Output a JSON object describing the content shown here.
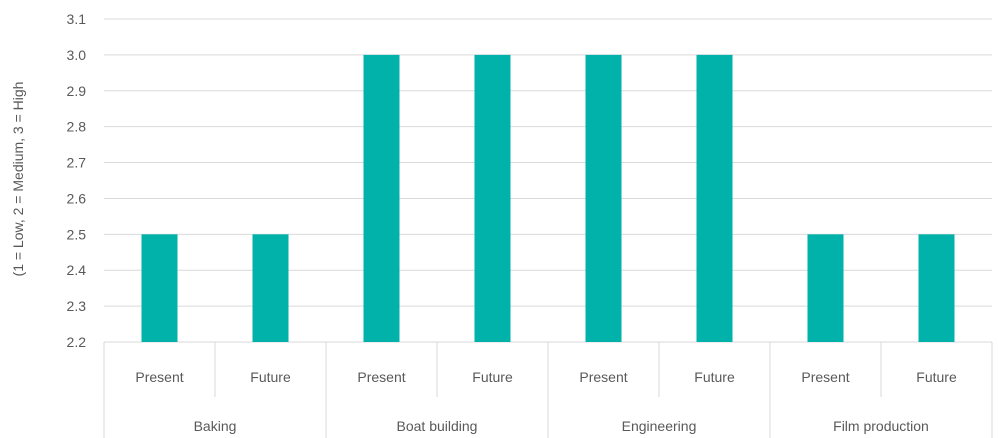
{
  "chart_data": {
    "type": "bar",
    "title": "",
    "xlabel": "",
    "ylabel": "(1 = Low, 2 = Medium, 3 = High",
    "ylim": [
      2.2,
      3.1
    ],
    "yticks": [
      "2.2",
      "2.3",
      "2.4",
      "2.5",
      "2.6",
      "2.7",
      "2.8",
      "2.9",
      "3.0",
      "3.1"
    ],
    "grid": true,
    "legend": "none",
    "groups": [
      "Baking",
      "Boat building",
      "Engineering",
      "Film production"
    ],
    "categories": [
      "Present",
      "Future",
      "Present",
      "Future",
      "Present",
      "Future",
      "Present",
      "Future"
    ],
    "values": [
      2.5,
      2.5,
      3.0,
      3.0,
      3.0,
      3.0,
      2.5,
      2.5
    ],
    "colors": {
      "bar": "#00B2A9",
      "grid": "#d9d9d9",
      "text": "#595959"
    }
  }
}
